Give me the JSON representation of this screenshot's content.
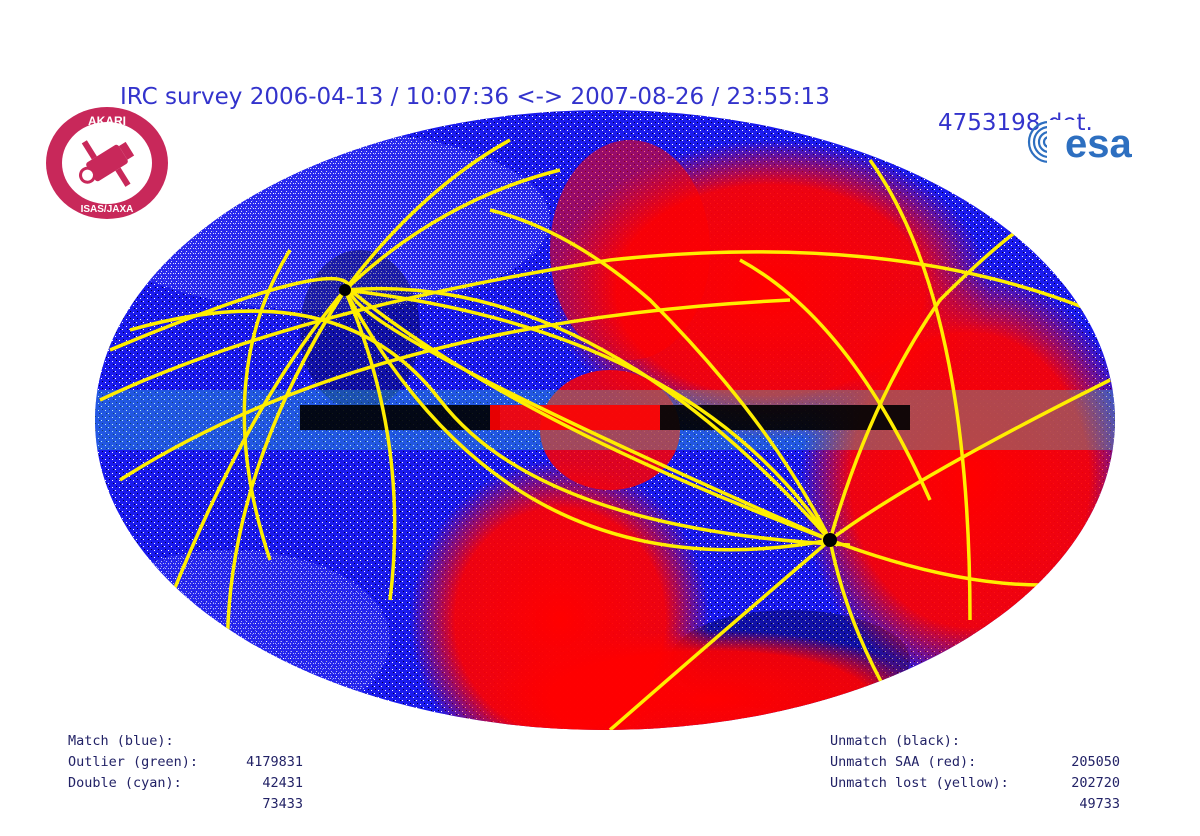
{
  "header": {
    "survey_text": "IRC survey 2006-04-13 / 10:07:36 <-> 2007-08-26 / 23:55:13",
    "detections_text": "4753198 det."
  },
  "logos": {
    "left": {
      "name": "AKARI ISAS/JAXA mission emblem",
      "lettering": [
        "AKARI",
        "ISAS/JAXA"
      ],
      "color": "#c8285a"
    },
    "right": {
      "name": "ESA logo",
      "lettering": "esa",
      "color": "#2d6fc0"
    }
  },
  "map": {
    "projection": "all-sky ellipse (Aitoff/Hammer)",
    "colors": {
      "background": "#ffffff",
      "match": "#1a1aee",
      "outlier": "#22aa44",
      "double": "#33cccc",
      "unmatch": "#000000",
      "unmatch_saa": "#ff0000",
      "unmatch_lost": "#ffee00",
      "match_noise": "#ffffff"
    }
  },
  "stats_left": [
    {
      "label": "Match (blue):",
      "value": "4179831"
    },
    {
      "label": "Outlier (green):",
      "value": "42431"
    },
    {
      "label": "Double (cyan):",
      "value": "73433"
    }
  ],
  "stats_right": [
    {
      "label": "Unmatch (black):",
      "value": "205050"
    },
    {
      "label": "Unmatch SAA (red):",
      "value": "202720"
    },
    {
      "label": "Unmatch lost (yellow):",
      "value": "49733"
    }
  ]
}
